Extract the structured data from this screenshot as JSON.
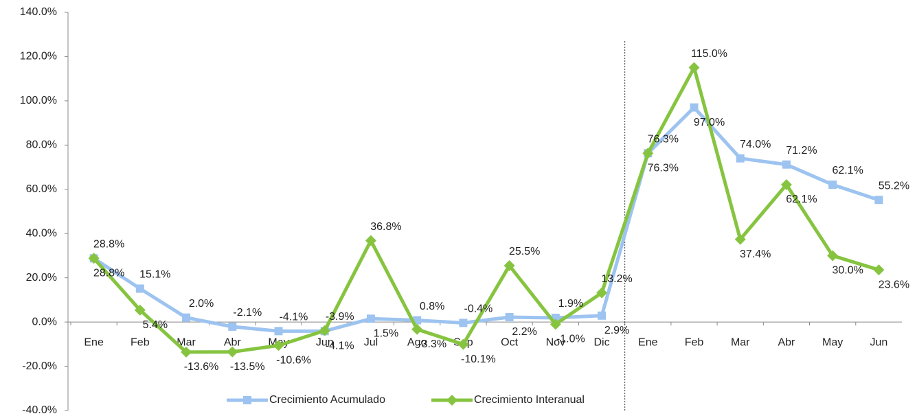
{
  "chart_data": {
    "type": "line",
    "categories": [
      "Ene",
      "Feb",
      "Mar",
      "Abr",
      "May",
      "Jun",
      "Jul",
      "Ago",
      "Sep",
      "Oct",
      "Nov",
      "Dic",
      "Ene",
      "Feb",
      "Mar",
      "Abr",
      "May",
      "Jun"
    ],
    "series": [
      {
        "name": "Crecimiento Acumulado",
        "color": "#9dc3f0",
        "marker": "square",
        "values": [
          28.8,
          15.1,
          2.0,
          -2.1,
          -4.1,
          -4.1,
          1.5,
          0.8,
          -0.4,
          2.2,
          1.9,
          2.9,
          76.3,
          97.0,
          74.0,
          71.2,
          62.1,
          55.2
        ],
        "value_labels": [
          "28.8%",
          "15.1%",
          "2.0%",
          "-2.1%",
          "-4.1%",
          "-4.1%",
          "1.5%",
          "0.8%",
          "-0.4%",
          "2.2%",
          "1.9%",
          "2.9%",
          "76.3%",
          "97.0%",
          "74.0%",
          "71.2%",
          "62.1%",
          "55.2%"
        ]
      },
      {
        "name": "Crecimiento Interanual",
        "color": "#86c440",
        "marker": "diamond",
        "values": [
          28.8,
          5.4,
          -13.6,
          -13.5,
          -10.6,
          -3.9,
          36.8,
          -3.3,
          -10.1,
          25.5,
          -1.0,
          13.2,
          76.3,
          115.0,
          37.4,
          62.1,
          30.0,
          23.6
        ],
        "value_labels": [
          "28.8%",
          "5.4%",
          "-13.6%",
          "-13.5%",
          "-10.6%",
          "-3.9%",
          "36.8%",
          "-3.3%",
          "-10.1%",
          "25.5%",
          "-1.0%",
          "13.2%",
          "76.3%",
          "115.0%",
          "37.4%",
          "62.1%",
          "30.0%",
          "23.6%"
        ]
      }
    ],
    "ylim": [
      -40,
      140
    ],
    "yticks": [
      {
        "value": -40,
        "label": "-40.0%"
      },
      {
        "value": -20,
        "label": "-20.0%"
      },
      {
        "value": 0,
        "label": "0.0%"
      },
      {
        "value": 20,
        "label": "20.0%"
      },
      {
        "value": 40,
        "label": "40.0%"
      },
      {
        "value": 60,
        "label": "60.0%"
      },
      {
        "value": 80,
        "label": "80.0%"
      },
      {
        "value": 100,
        "label": "100.0%"
      },
      {
        "value": 120,
        "label": "120.0%"
      },
      {
        "value": 140,
        "label": "140.0%"
      }
    ],
    "legend": "bottom"
  }
}
